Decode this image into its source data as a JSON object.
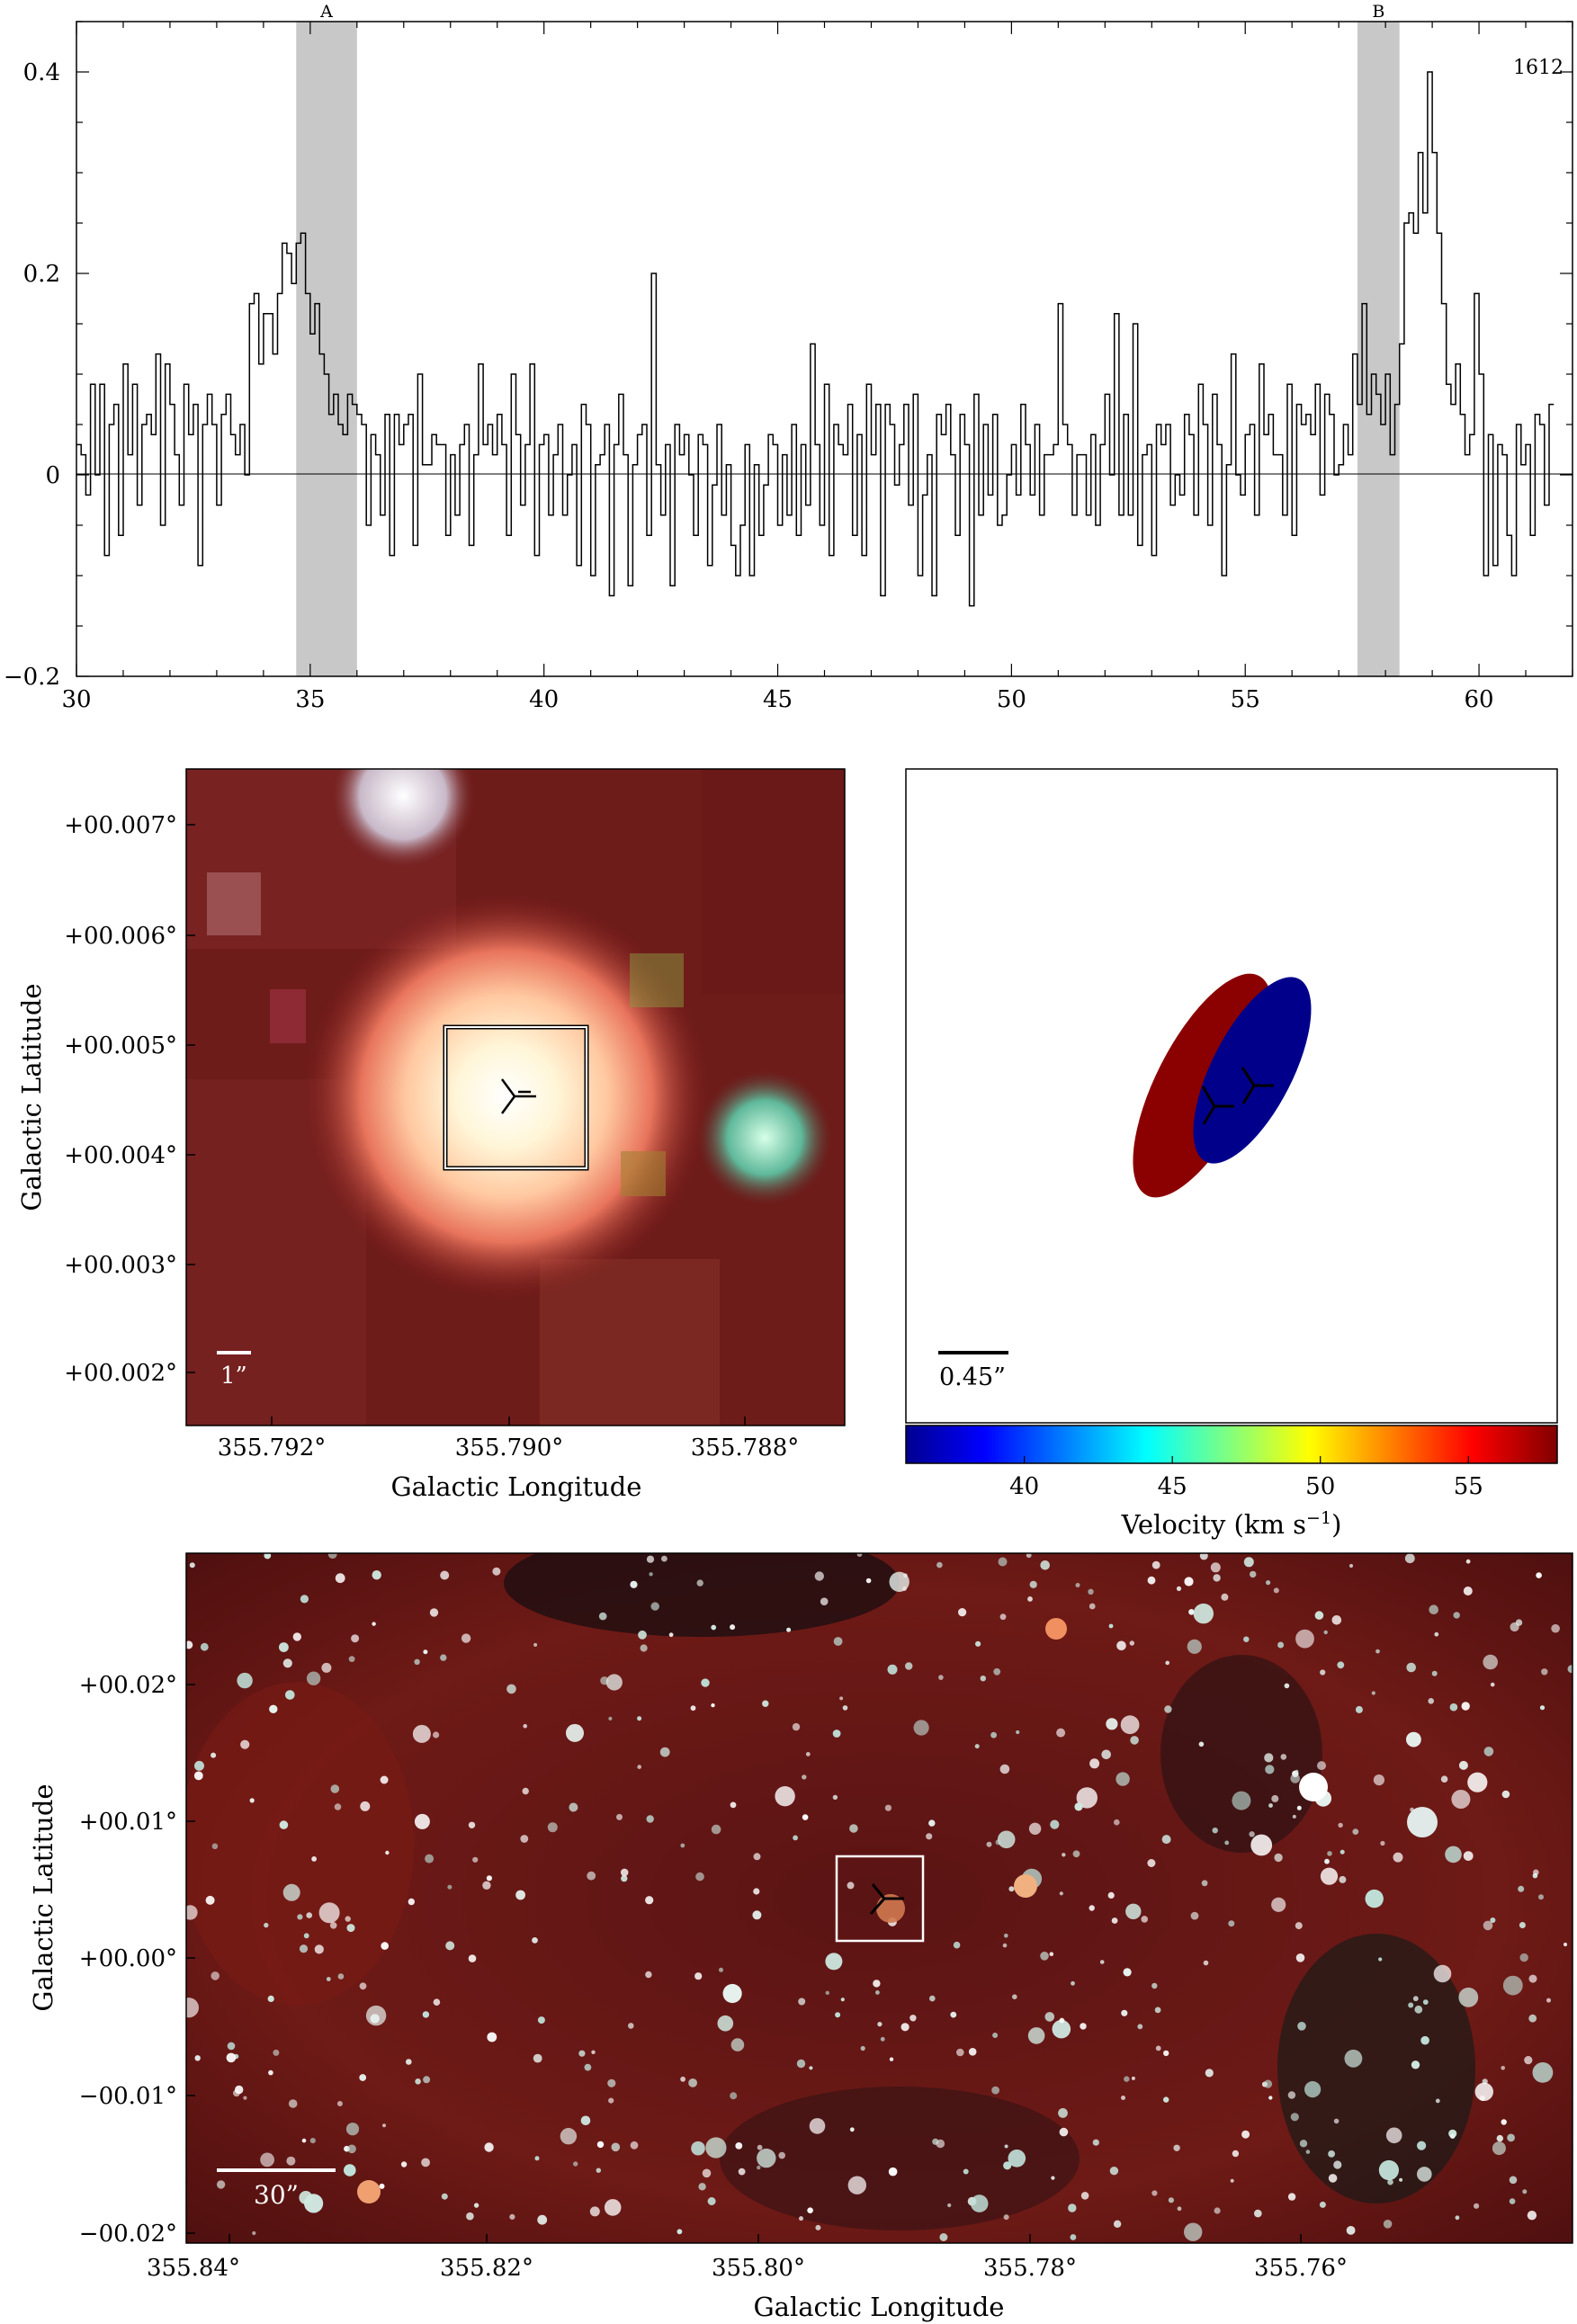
{
  "chart_data": [
    {
      "type": "line",
      "panel": "spectrum",
      "label": "1612",
      "xlim": [
        30,
        62
      ],
      "ylim": [
        -0.2,
        0.45
      ],
      "xticks": [
        30,
        35,
        40,
        45,
        50,
        55,
        60
      ],
      "yticks": [
        -0.2,
        0,
        0.2,
        0.4
      ],
      "ytick_labels": [
        "−0.2",
        "0",
        "0.2",
        "0.4"
      ],
      "highlight_regions": [
        {
          "label": "A",
          "range": [
            34.7,
            36.0
          ]
        },
        {
          "label": "B",
          "range": [
            57.4,
            58.3
          ]
        }
      ],
      "step": 0.1,
      "x_start": 30.0,
      "values": [
        0.03,
        0.02,
        -0.02,
        0.09,
        0.0,
        0.09,
        -0.08,
        0.05,
        0.07,
        -0.06,
        0.11,
        0.02,
        0.09,
        -0.03,
        0.05,
        0.06,
        0.04,
        0.12,
        -0.05,
        0.11,
        0.07,
        0.02,
        -0.03,
        0.09,
        0.04,
        0.07,
        -0.09,
        0.05,
        0.08,
        0.05,
        -0.03,
        0.06,
        0.08,
        0.04,
        0.02,
        0.05,
        0.0,
        0.17,
        0.18,
        0.11,
        0.16,
        0.16,
        0.12,
        0.18,
        0.23,
        0.22,
        0.19,
        0.23,
        0.24,
        0.18,
        0.14,
        0.17,
        0.12,
        0.1,
        0.06,
        0.08,
        0.05,
        0.04,
        0.08,
        0.07,
        0.06,
        0.05,
        -0.05,
        0.04,
        0.02,
        -0.04,
        0.06,
        -0.08,
        0.06,
        0.03,
        0.05,
        0.06,
        -0.07,
        0.1,
        0.01,
        0.01,
        0.04,
        0.03,
        0.03,
        -0.06,
        0.02,
        -0.04,
        0.03,
        0.05,
        -0.07,
        0.02,
        0.11,
        0.03,
        0.05,
        0.02,
        0.06,
        0.03,
        -0.06,
        0.1,
        0.04,
        -0.03,
        0.03,
        0.11,
        -0.08,
        0.03,
        0.04,
        -0.04,
        0.02,
        0.05,
        -0.04,
        0.0,
        0.03,
        -0.09,
        0.07,
        0.05,
        -0.1,
        0.01,
        0.02,
        0.05,
        -0.12,
        0.03,
        0.08,
        0.02,
        -0.11,
        0.01,
        0.04,
        0.05,
        -0.06,
        0.2,
        0.01,
        -0.04,
        0.03,
        -0.11,
        0.05,
        0.02,
        0.04,
        0.0,
        -0.06,
        0.04,
        0.03,
        -0.09,
        -0.01,
        0.05,
        -0.04,
        0.01,
        -0.07,
        -0.1,
        -0.05,
        0.03,
        -0.1,
        0.01,
        -0.06,
        -0.01,
        0.04,
        0.03,
        -0.05,
        0.02,
        -0.04,
        0.05,
        -0.06,
        0.03,
        -0.03,
        0.13,
        0.03,
        -0.05,
        0.09,
        -0.08,
        0.05,
        0.03,
        0.02,
        0.07,
        -0.06,
        0.04,
        -0.08,
        0.09,
        0.02,
        0.07,
        -0.12,
        0.07,
        0.05,
        -0.01,
        0.03,
        0.07,
        -0.03,
        0.08,
        -0.1,
        -0.02,
        0.02,
        -0.12,
        0.06,
        0.04,
        0.07,
        0.02,
        -0.06,
        0.06,
        0.03,
        -0.13,
        0.08,
        -0.04,
        0.05,
        -0.02,
        0.06,
        -0.05,
        -0.04,
        0.0,
        0.03,
        -0.02,
        0.07,
        0.03,
        -0.02,
        0.05,
        -0.04,
        0.02,
        0.02,
        0.03,
        0.17,
        0.05,
        0.03,
        -0.04,
        0.02,
        0.02,
        -0.04,
        0.04,
        -0.05,
        0.03,
        0.08,
        0.0,
        0.16,
        -0.04,
        0.06,
        -0.04,
        0.15,
        -0.07,
        0.02,
        0.03,
        -0.08,
        0.05,
        0.03,
        0.05,
        -0.03,
        0.0,
        -0.02,
        0.06,
        0.04,
        -0.04,
        0.09,
        0.05,
        -0.05,
        0.08,
        0.03,
        -0.1,
        0.01,
        0.12,
        0.0,
        -0.02,
        0.04,
        0.05,
        -0.04,
        0.11,
        0.04,
        0.06,
        0.02,
        0.02,
        -0.04,
        0.09,
        -0.06,
        0.07,
        0.05,
        0.06,
        0.04,
        0.09,
        -0.02,
        0.08,
        0.06,
        0.0,
        0.01,
        0.05,
        0.02,
        0.12,
        0.07,
        0.17,
        0.06,
        0.1,
        0.08,
        0.05,
        0.1,
        0.02,
        0.07,
        0.13,
        0.25,
        0.26,
        0.24,
        0.32,
        0.26,
        0.4,
        0.32,
        0.24,
        0.17,
        0.09,
        0.07,
        0.11,
        0.06,
        0.02,
        0.04,
        0.18,
        0.1,
        -0.1,
        0.04,
        -0.09,
        0.03,
        0.02,
        -0.06,
        -0.1,
        0.05,
        0.01,
        0.03,
        -0.06,
        0.06,
        0.05,
        -0.03,
        0.07
      ],
      "xlabel": "",
      "ylabel": ""
    },
    {
      "type": "heatmap",
      "panel": "rgb-zoom-image",
      "xlabel": "Galactic Longitude",
      "ylabel": "Galactic Latitude",
      "xtick_labels": [
        "355.792°",
        "355.790°",
        "355.788°"
      ],
      "ytick_labels": [
        "+00.007°",
        "+00.006°",
        "+00.005°",
        "+00.004°",
        "+00.003°",
        "+00.002°"
      ],
      "scale_bar": "1”"
    },
    {
      "type": "scatter",
      "panel": "maser-spot-map",
      "colorbar_label": "Velocity (km s",
      "colorbar_label_sup": "−1",
      "colorbar_label_end": ")",
      "colorbar_range": [
        36,
        58
      ],
      "colorbar_ticks": [
        "40",
        "45",
        "50",
        "55"
      ],
      "scale_bar": "0.45”",
      "points": [
        {
          "label": "A",
          "velocity": 35.4,
          "color": "#00008b"
        },
        {
          "label": "B",
          "velocity": 57.9,
          "color": "#8b0000"
        }
      ]
    },
    {
      "type": "heatmap",
      "panel": "rgb-field-image",
      "xlabel": "Galactic Longitude",
      "ylabel": "Galactic Latitude",
      "xtick_labels": [
        "355.84°",
        "355.82°",
        "355.80°",
        "355.78°",
        "355.76°"
      ],
      "ytick_labels": [
        "+00.02°",
        "+00.01°",
        "+00.00°",
        "−00.01°",
        "−00.02°"
      ],
      "scale_bar": "30”"
    }
  ]
}
